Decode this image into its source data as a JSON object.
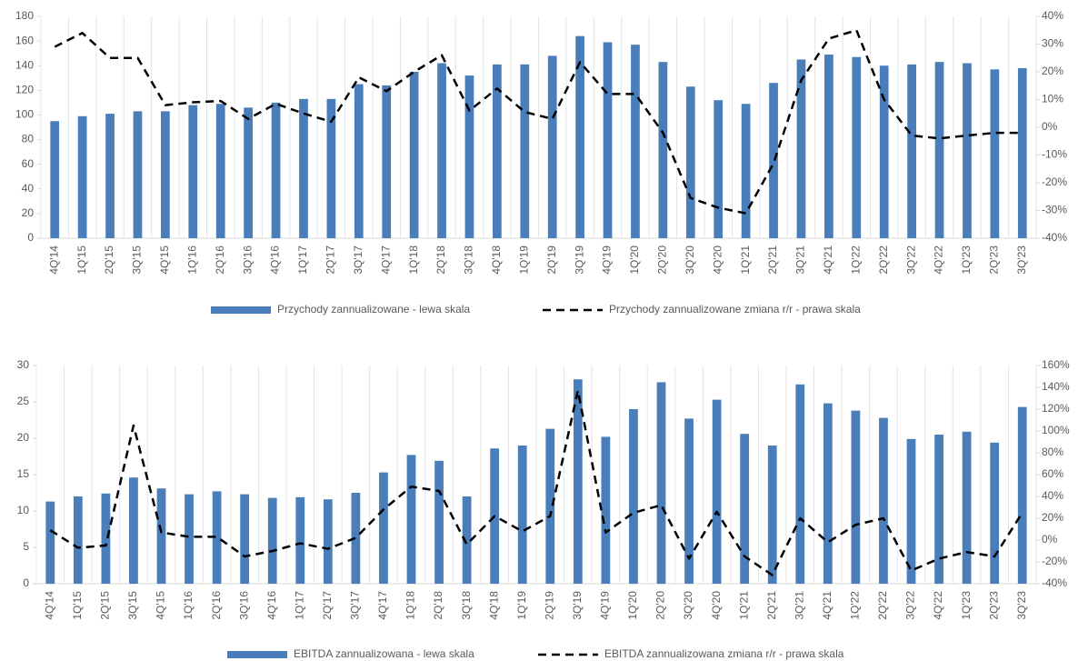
{
  "chart_data": [
    {
      "type": "combo",
      "categories": [
        "4Q'14",
        "1Q'15",
        "2Q'15",
        "3Q'15",
        "4Q'15",
        "1Q'16",
        "2Q'16",
        "3Q'16",
        "4Q'16",
        "1Q'17",
        "2Q'17",
        "3Q'17",
        "4Q'17",
        "1Q'18",
        "2Q'18",
        "3Q'18",
        "4Q'18",
        "1Q'19",
        "2Q'19",
        "3Q'19",
        "4Q'19",
        "1Q'20",
        "2Q'20",
        "3Q'20",
        "4Q'20",
        "1Q'21",
        "2Q'21",
        "3Q'21",
        "4Q'21",
        "1Q'22",
        "2Q'22",
        "3Q'22",
        "4Q'22",
        "1Q'23",
        "2Q'23",
        "3Q'23"
      ],
      "series": [
        {
          "name": "Przychody zannualizowane - lewa skala",
          "type": "bar",
          "color": "#4a7ebb",
          "values": [
            95,
            99,
            101,
            103,
            103,
            108,
            109,
            106,
            110,
            113,
            113,
            125,
            124,
            135,
            142,
            132,
            141,
            141,
            148,
            164,
            159,
            157,
            143,
            123,
            112,
            109,
            126,
            145,
            149,
            147,
            140,
            141,
            143,
            142,
            137,
            138
          ]
        },
        {
          "name": "Przychody zannualizowane zmiana r/r - prawa skala",
          "type": "line",
          "axis": "y2",
          "color": "#000000",
          "values": [
            29,
            34,
            25,
            25,
            8,
            9,
            9.5,
            3,
            8.5,
            5,
            2,
            18,
            13,
            20,
            26,
            6,
            14,
            5.5,
            3,
            23.5,
            12,
            12,
            -2,
            -25.5,
            -29,
            -31,
            -13,
            17,
            32,
            35,
            10,
            -3,
            -4,
            -3,
            -2,
            -2
          ]
        }
      ],
      "ylim": [
        0,
        180
      ],
      "yticks": [
        0,
        20,
        40,
        60,
        80,
        100,
        120,
        140,
        160,
        180
      ],
      "y2lim": [
        -40,
        40
      ],
      "y2ticks": [
        {
          "value": -40,
          "label": "-40%"
        },
        {
          "value": -30,
          "label": "-30%"
        },
        {
          "value": -20,
          "label": "-20%"
        },
        {
          "value": -10,
          "label": "-10%"
        },
        {
          "value": 0,
          "label": "0%"
        },
        {
          "value": 10,
          "label": "10%"
        },
        {
          "value": 20,
          "label": "20%"
        },
        {
          "value": 30,
          "label": "30%"
        },
        {
          "value": 40,
          "label": "40%"
        }
      ],
      "grid": true
    },
    {
      "type": "combo",
      "categories": [
        "4Q'14",
        "1Q'15",
        "2Q'15",
        "3Q'15",
        "4Q'15",
        "1Q'16",
        "2Q'16",
        "3Q'16",
        "4Q'16",
        "1Q'17",
        "2Q'17",
        "3Q'17",
        "4Q'17",
        "1Q'18",
        "2Q'18",
        "3Q'18",
        "4Q'18",
        "1Q'19",
        "2Q'19",
        "3Q'19",
        "4Q'19",
        "1Q'20",
        "2Q'20",
        "3Q'20",
        "4Q'20",
        "1Q'21",
        "2Q'21",
        "3Q'21",
        "4Q'21",
        "1Q'22",
        "2Q'22",
        "3Q'22",
        "4Q'22",
        "1Q'23",
        "2Q'23",
        "3Q'23"
      ],
      "series": [
        {
          "name": "EBITDA zannualizowana - lewa skala",
          "type": "bar",
          "color": "#4a7ebb",
          "values": [
            11.3,
            12,
            12.4,
            14.6,
            13.1,
            12.3,
            12.7,
            12.3,
            11.8,
            11.9,
            11.6,
            12.5,
            15.3,
            17.7,
            16.9,
            12,
            18.6,
            19,
            21.3,
            28.1,
            20.2,
            24,
            27.7,
            22.7,
            25.3,
            20.6,
            19,
            27.4,
            24.8,
            23.8,
            22.8,
            19.9,
            20.5,
            20.9,
            19.4,
            24.3
          ]
        },
        {
          "name": "EBITDA zannualizowana zmiana r/r - prawa skala",
          "type": "line",
          "axis": "y2",
          "color": "#000000",
          "values": [
            9,
            -7,
            -5,
            105,
            7,
            3,
            3,
            -15,
            -10,
            -3,
            -8,
            2,
            28,
            49,
            45,
            -4,
            22,
            8,
            22,
            137,
            7,
            25,
            32,
            -17,
            26,
            -15,
            -32,
            20,
            -2,
            14,
            20,
            -28,
            -17,
            -11,
            -15,
            25
          ]
        }
      ],
      "ylim": [
        0,
        30
      ],
      "yticks": [
        0,
        5,
        10,
        15,
        20,
        25,
        30
      ],
      "y2lim": [
        -40,
        160
      ],
      "y2ticks": [
        {
          "value": -40,
          "label": "-40%"
        },
        {
          "value": -20,
          "label": "-20%"
        },
        {
          "value": 0,
          "label": "0%"
        },
        {
          "value": 20,
          "label": "20%"
        },
        {
          "value": 40,
          "label": "40%"
        },
        {
          "value": 60,
          "label": "60%"
        },
        {
          "value": 80,
          "label": "80%"
        },
        {
          "value": 100,
          "label": "100%"
        },
        {
          "value": 120,
          "label": "120%"
        },
        {
          "value": 140,
          "label": "140%"
        },
        {
          "value": 160,
          "label": "160%"
        }
      ],
      "grid": true
    }
  ]
}
